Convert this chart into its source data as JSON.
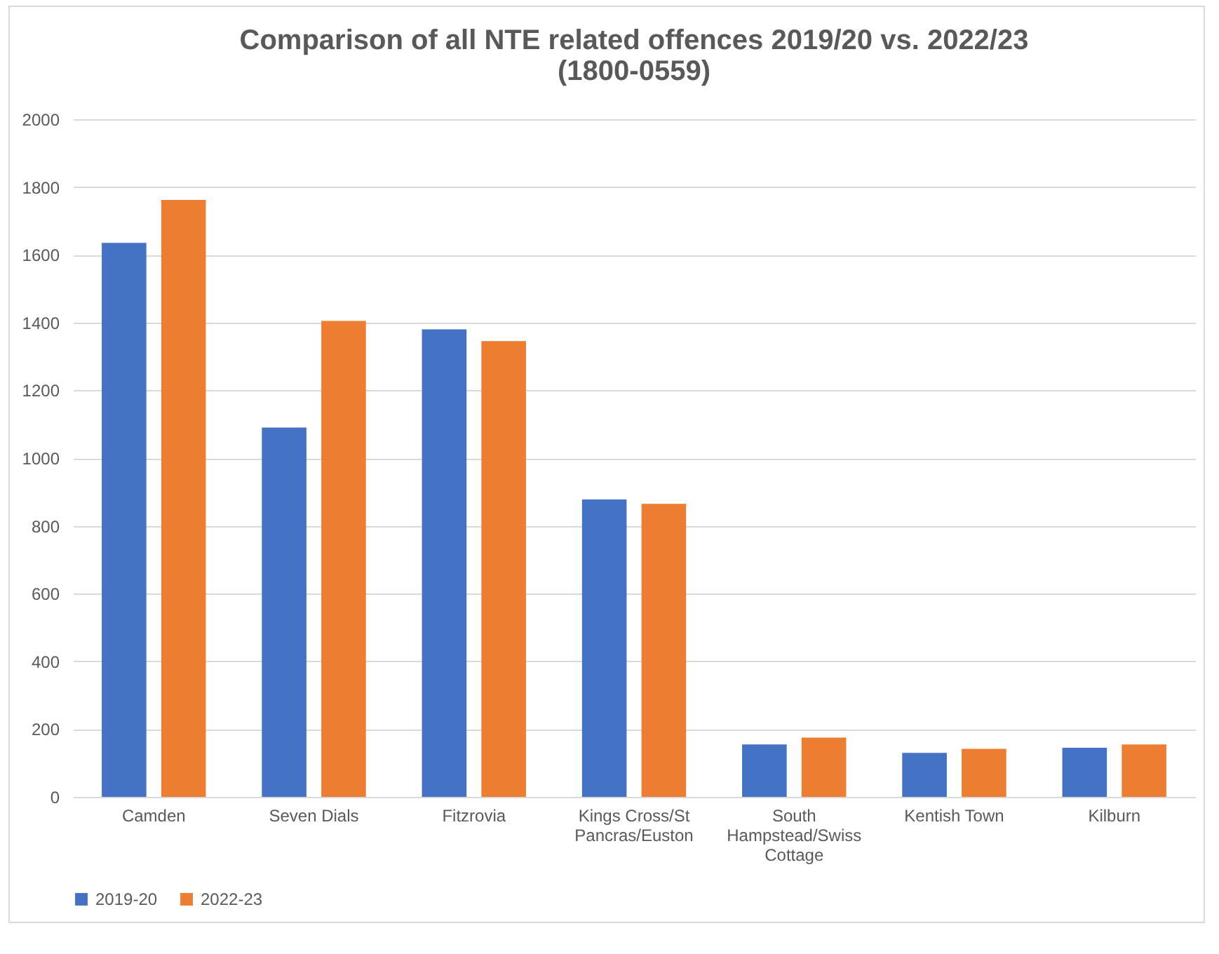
{
  "chart_data": {
    "type": "bar",
    "title": "Comparison of all NTE related offences 2019/20 vs. 2022/23",
    "subtitle": "(1800-0559)",
    "categories": [
      "Camden",
      "Seven Dials",
      "Fitzrovia",
      "Kings Cross/St Pancras/Euston",
      "South Hampstead/Swiss Cottage",
      "Kentish Town",
      "Kilburn"
    ],
    "series": [
      {
        "name": "2019-20",
        "color": "#4472c4",
        "values": [
          1635,
          1090,
          1380,
          878,
          155,
          130,
          145
        ]
      },
      {
        "name": "2022-23",
        "color": "#ed7d31",
        "values": [
          1762,
          1405,
          1345,
          865,
          175,
          142,
          155
        ]
      }
    ],
    "ylim": [
      0,
      2000
    ],
    "yticks": [
      0,
      200,
      400,
      600,
      800,
      1000,
      1200,
      1400,
      1600,
      1800,
      2000
    ],
    "grid": "y",
    "legend": "bottom"
  }
}
